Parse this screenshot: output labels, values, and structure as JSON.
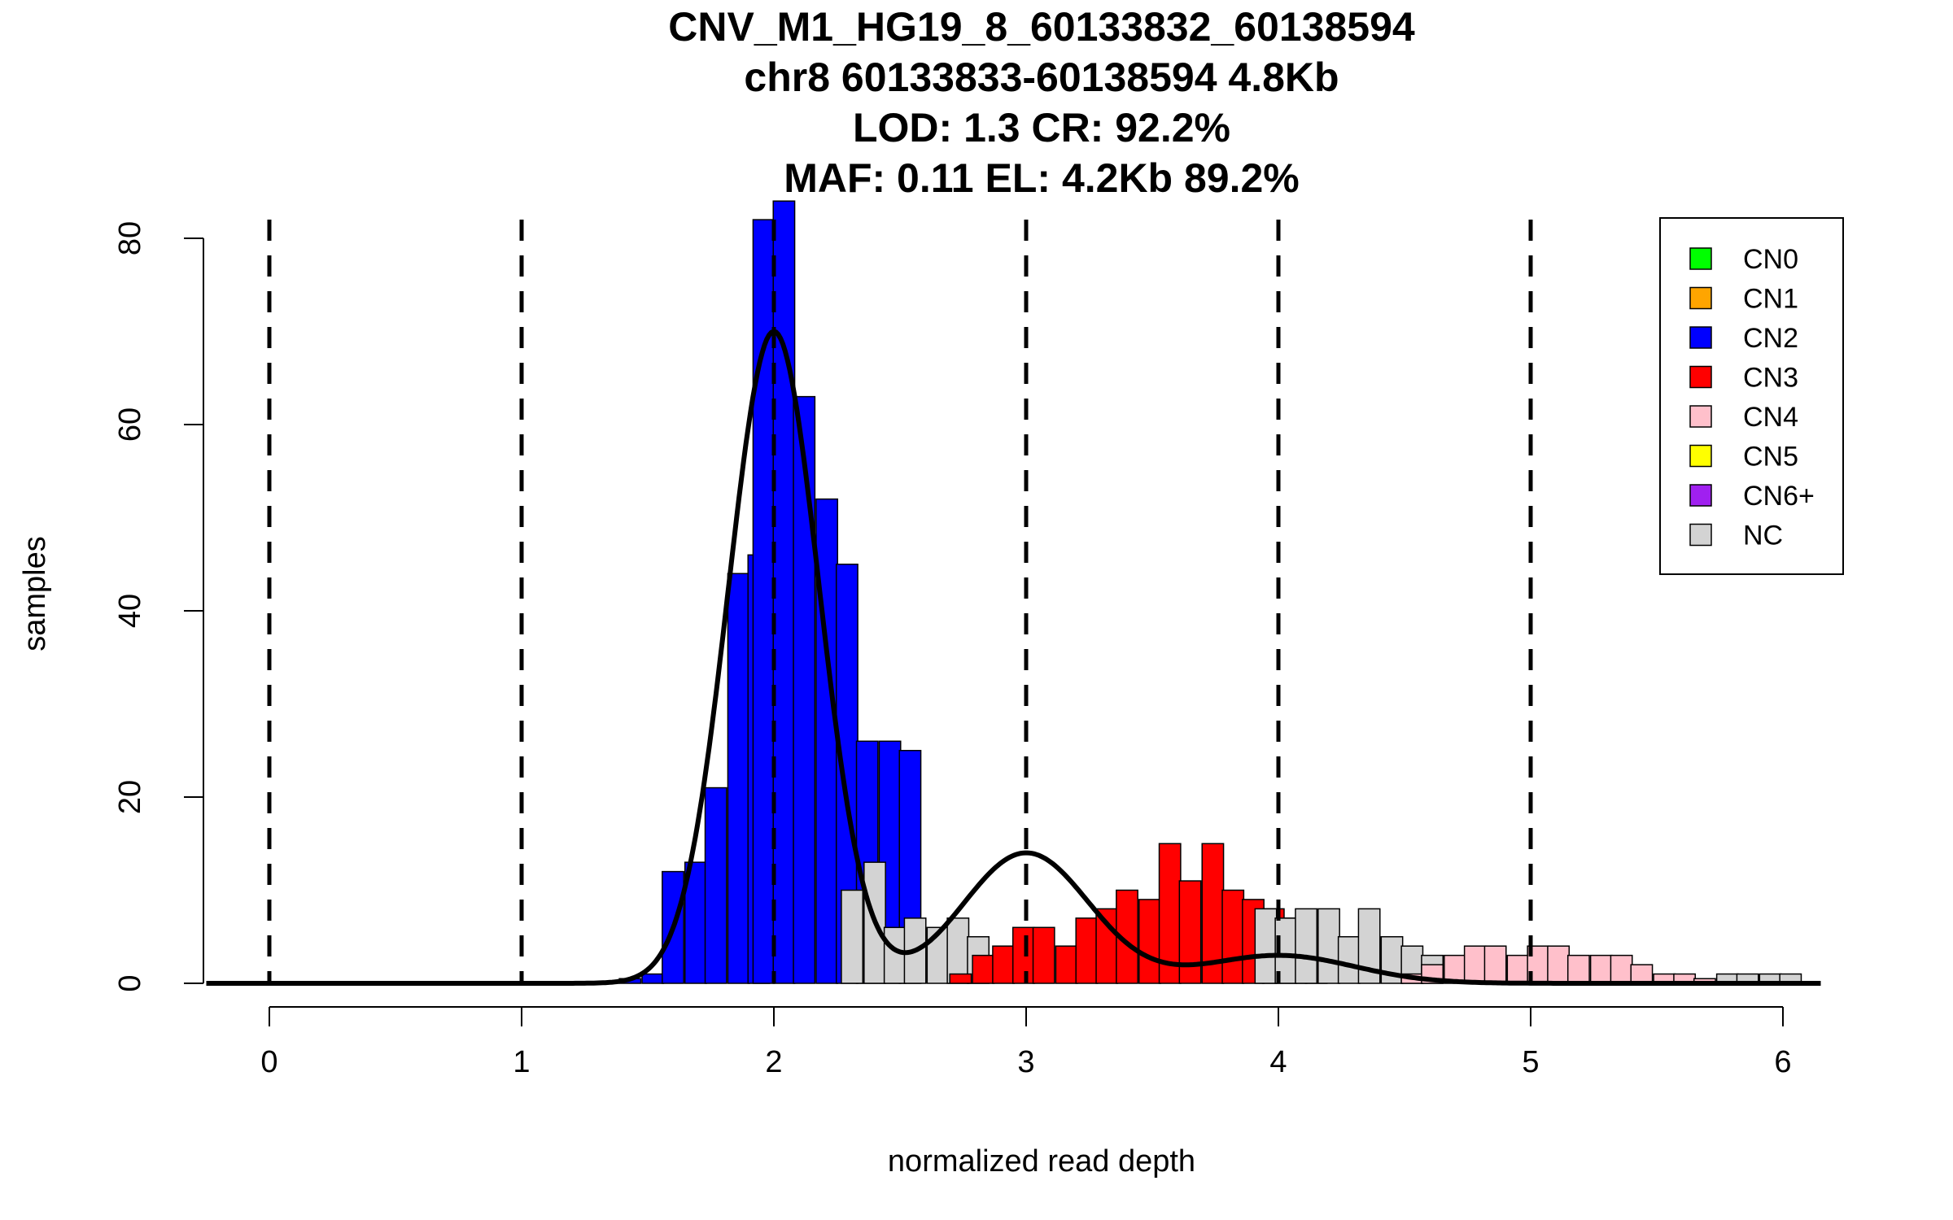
{
  "chart_data": {
    "type": "bar",
    "title_lines": [
      "CNV_M1_HG19_8_60133832_60138594",
      "chr8 60133833-60138594 4.8Kb",
      "LOD: 1.3 CR: 92.2%",
      "MAF: 0.11 EL: 4.2Kb 89.2%"
    ],
    "xlabel": "normalized read depth",
    "ylabel": "samples",
    "xlim": [
      -0.25,
      6.15
    ],
    "ylim": [
      0,
      84
    ],
    "x_ticks": [
      "0",
      "1",
      "2",
      "3",
      "4",
      "5",
      "6"
    ],
    "y_ticks": [
      "0",
      "20",
      "40",
      "60",
      "80"
    ],
    "x_tick_values": [
      0,
      1,
      2,
      3,
      4,
      5,
      6
    ],
    "y_tick_values": [
      0,
      20,
      40,
      60,
      80
    ],
    "vlines": [
      0,
      1,
      2,
      3,
      4,
      5
    ],
    "bin_width": 0.085,
    "legend_position": "top-right",
    "legend": [
      {
        "label": "CN0",
        "color": "#00ff00"
      },
      {
        "label": "CN1",
        "color": "#ffa500"
      },
      {
        "label": "CN2",
        "color": "#0000ff"
      },
      {
        "label": "CN3",
        "color": "#ff0000"
      },
      {
        "label": "CN4",
        "color": "#ffc0cb"
      },
      {
        "label": "CN5",
        "color": "#ffff00"
      },
      {
        "label": "CN6+",
        "color": "#a020f0"
      },
      {
        "label": "NC",
        "color": "#d3d3d3"
      }
    ],
    "bars": [
      {
        "x": 1.43,
        "y": 0.5,
        "cn": "CN2"
      },
      {
        "x": 1.52,
        "y": 1,
        "cn": "CN2"
      },
      {
        "x": 1.6,
        "y": 12,
        "cn": "CN2"
      },
      {
        "x": 1.69,
        "y": 13,
        "cn": "CN2"
      },
      {
        "x": 1.77,
        "y": 21,
        "cn": "CN2"
      },
      {
        "x": 1.86,
        "y": 44,
        "cn": "CN2"
      },
      {
        "x": 1.94,
        "y": 46,
        "cn": "CN2"
      },
      {
        "x": 1.96,
        "y": 82,
        "cn": "CN2"
      },
      {
        "x": 2.04,
        "y": 84,
        "cn": "CN2"
      },
      {
        "x": 2.12,
        "y": 63,
        "cn": "CN2"
      },
      {
        "x": 2.21,
        "y": 52,
        "cn": "CN2"
      },
      {
        "x": 2.29,
        "y": 45,
        "cn": "CN2"
      },
      {
        "x": 2.37,
        "y": 26,
        "cn": "CN2"
      },
      {
        "x": 2.46,
        "y": 26,
        "cn": "CN2"
      },
      {
        "x": 2.54,
        "y": 25,
        "cn": "CN2"
      },
      {
        "x": 2.31,
        "y": 10,
        "cn": "NC"
      },
      {
        "x": 2.4,
        "y": 13,
        "cn": "NC"
      },
      {
        "x": 2.48,
        "y": 6,
        "cn": "NC"
      },
      {
        "x": 2.56,
        "y": 7,
        "cn": "NC"
      },
      {
        "x": 2.65,
        "y": 6,
        "cn": "NC"
      },
      {
        "x": 2.73,
        "y": 7,
        "cn": "NC"
      },
      {
        "x": 2.81,
        "y": 5,
        "cn": "NC"
      },
      {
        "x": 2.74,
        "y": 1,
        "cn": "CN3"
      },
      {
        "x": 2.83,
        "y": 3,
        "cn": "CN3"
      },
      {
        "x": 2.91,
        "y": 4,
        "cn": "CN3"
      },
      {
        "x": 2.99,
        "y": 6,
        "cn": "CN3"
      },
      {
        "x": 3.07,
        "y": 6,
        "cn": "CN3"
      },
      {
        "x": 3.16,
        "y": 4,
        "cn": "CN3"
      },
      {
        "x": 3.24,
        "y": 7,
        "cn": "CN3"
      },
      {
        "x": 3.32,
        "y": 8,
        "cn": "CN3"
      },
      {
        "x": 3.4,
        "y": 10,
        "cn": "CN3"
      },
      {
        "x": 3.49,
        "y": 9,
        "cn": "CN3"
      },
      {
        "x": 3.57,
        "y": 15,
        "cn": "CN3"
      },
      {
        "x": 3.65,
        "y": 11,
        "cn": "CN3"
      },
      {
        "x": 3.74,
        "y": 15,
        "cn": "CN3"
      },
      {
        "x": 3.82,
        "y": 10,
        "cn": "CN3"
      },
      {
        "x": 3.9,
        "y": 9,
        "cn": "CN3"
      },
      {
        "x": 3.98,
        "y": 8,
        "cn": "CN3"
      },
      {
        "x": 4.07,
        "y": 7,
        "cn": "CN3"
      },
      {
        "x": 4.15,
        "y": 6,
        "cn": "CN3"
      },
      {
        "x": 3.95,
        "y": 8,
        "cn": "NC"
      },
      {
        "x": 4.03,
        "y": 7,
        "cn": "NC"
      },
      {
        "x": 4.11,
        "y": 8,
        "cn": "NC"
      },
      {
        "x": 4.2,
        "y": 8,
        "cn": "NC"
      },
      {
        "x": 4.28,
        "y": 5,
        "cn": "NC"
      },
      {
        "x": 4.36,
        "y": 8,
        "cn": "NC"
      },
      {
        "x": 4.45,
        "y": 5,
        "cn": "NC"
      },
      {
        "x": 4.53,
        "y": 4,
        "cn": "NC"
      },
      {
        "x": 4.61,
        "y": 3,
        "cn": "NC"
      },
      {
        "x": 4.53,
        "y": 1,
        "cn": "CN4"
      },
      {
        "x": 4.61,
        "y": 2,
        "cn": "CN4"
      },
      {
        "x": 4.7,
        "y": 3,
        "cn": "CN4"
      },
      {
        "x": 4.78,
        "y": 4,
        "cn": "CN4"
      },
      {
        "x": 4.86,
        "y": 4,
        "cn": "CN4"
      },
      {
        "x": 4.95,
        "y": 3,
        "cn": "CN4"
      },
      {
        "x": 5.03,
        "y": 4,
        "cn": "CN4"
      },
      {
        "x": 5.11,
        "y": 4,
        "cn": "CN4"
      },
      {
        "x": 5.19,
        "y": 3,
        "cn": "CN4"
      },
      {
        "x": 5.28,
        "y": 3,
        "cn": "CN4"
      },
      {
        "x": 5.36,
        "y": 3,
        "cn": "CN4"
      },
      {
        "x": 5.44,
        "y": 2,
        "cn": "CN4"
      },
      {
        "x": 5.53,
        "y": 1,
        "cn": "CN4"
      },
      {
        "x": 5.61,
        "y": 1,
        "cn": "CN4"
      },
      {
        "x": 5.69,
        "y": 0.5,
        "cn": "CN4"
      },
      {
        "x": 5.78,
        "y": 1,
        "cn": "NC"
      },
      {
        "x": 5.86,
        "y": 1,
        "cn": "NC"
      },
      {
        "x": 5.95,
        "y": 1,
        "cn": "NC"
      },
      {
        "x": 6.03,
        "y": 1,
        "cn": "NC"
      }
    ],
    "fit_components": [
      {
        "mean": 2.0,
        "sd": 0.18,
        "peak": 70
      },
      {
        "mean": 3.0,
        "sd": 0.25,
        "peak": 14
      },
      {
        "mean": 4.0,
        "sd": 0.3,
        "peak": 3
      }
    ]
  }
}
